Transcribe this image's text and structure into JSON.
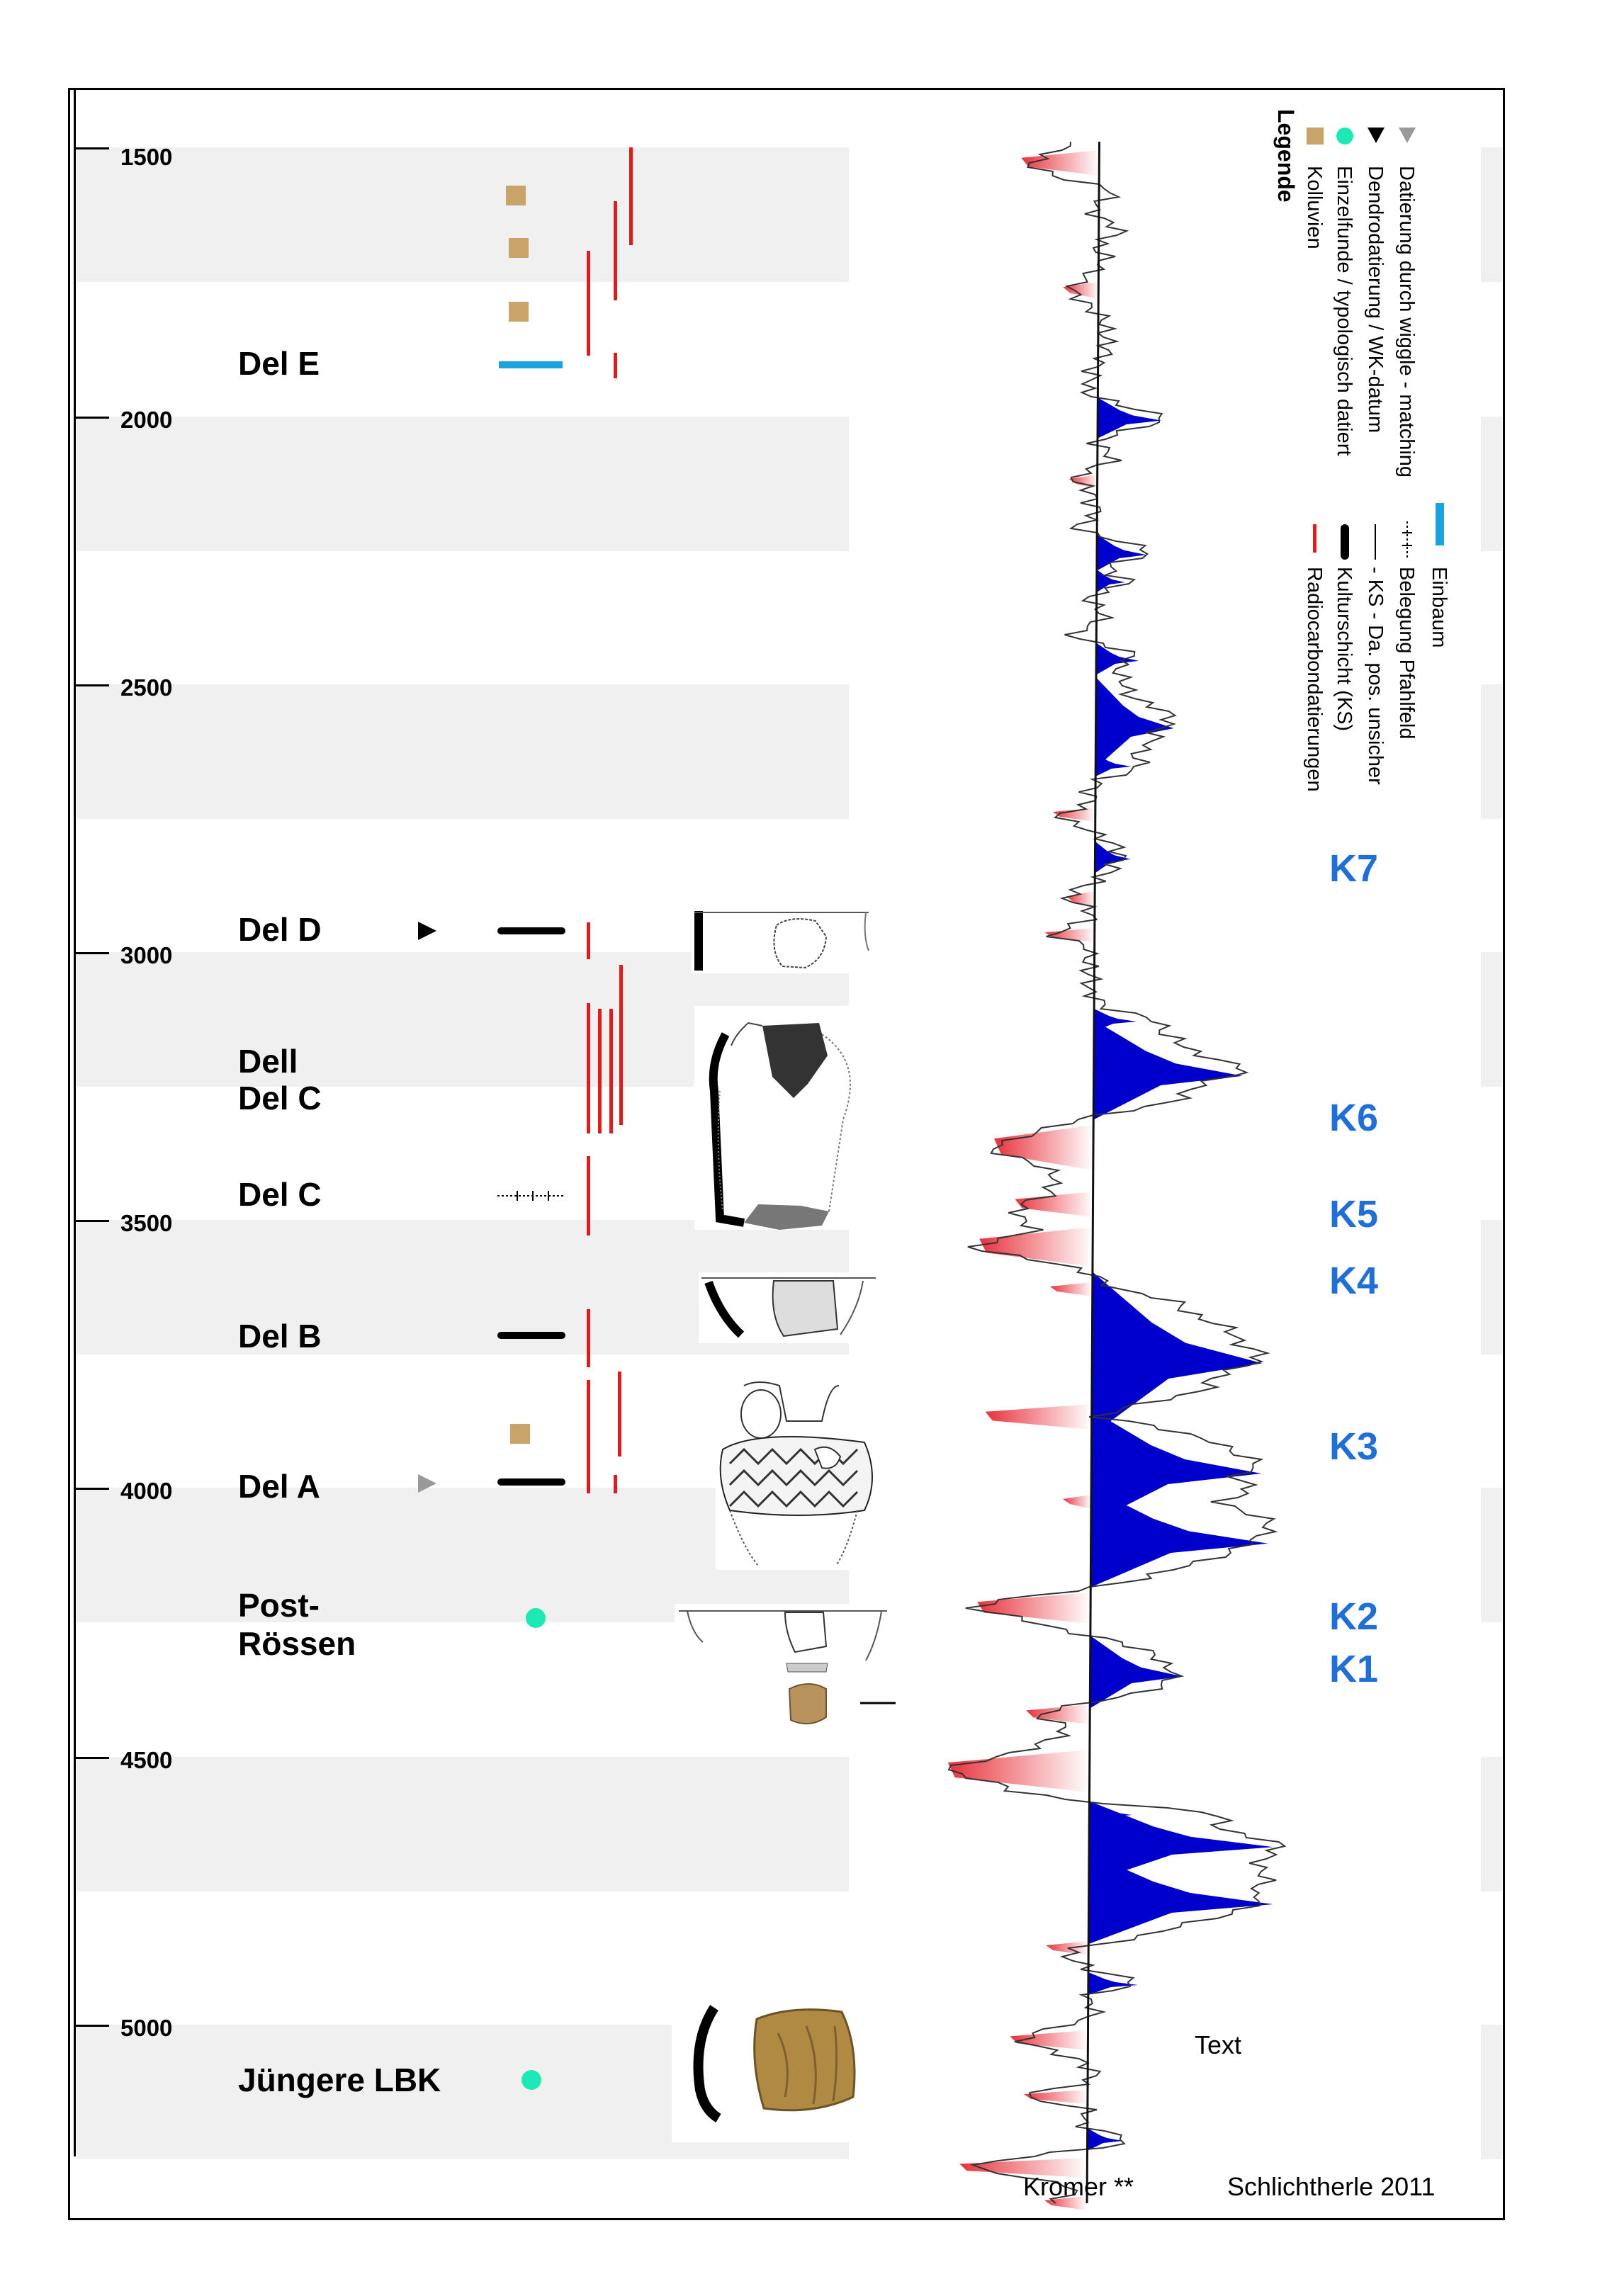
{
  "axis": {
    "years": [
      "1500",
      "2000",
      "2500",
      "3000",
      "3500",
      "4000",
      "4500",
      "5000"
    ]
  },
  "phases": {
    "del_e": "Del E",
    "del_d": "Del D",
    "dell": "Dell",
    "del_c_upper": "Del C",
    "del_c": "Del C",
    "del_b": "Del B",
    "del_a": "Del A",
    "post_roessen_1": "Post-",
    "post_roessen_2": "Rössen",
    "juengere_lbk": "Jüngere LBK"
  },
  "k_labels": [
    "K7",
    "K6",
    "K5",
    "K4",
    "K3",
    "K2",
    "K1"
  ],
  "legend": {
    "title": "Legende",
    "items": [
      "Kolluvien",
      "Einzelfunde  / typologisch datiert",
      "Dendrodatierung / WK-datum",
      "Datierung durch wiggle - matching",
      "Radiocarbondatierungen",
      "Kulturschicht (KS)",
      "- KS - Da. pos. unsicher",
      "Belegung Pfahlfeld",
      "Einbaum"
    ]
  },
  "curve_text": "Text",
  "credits": {
    "left": "Kromer **",
    "right": "Schlichtherle 2011"
  },
  "colors": {
    "kolluvien": "#c8a46a",
    "einzelfunde": "#1de9b6",
    "radiocarbon": "#e01b1b",
    "einbaum": "#1ba3e0",
    "positive_curve": "#0000cc",
    "negative_curve": "#e8323c",
    "k_label": "#1f6fd6",
    "band": "#f0f0f0"
  },
  "icons": {
    "kolluvien": "tan-square-icon",
    "einzelfunde": "cyan-dot-icon",
    "dendro": "black-triangle-icon",
    "wiggle": "grey-triangle-icon"
  }
}
